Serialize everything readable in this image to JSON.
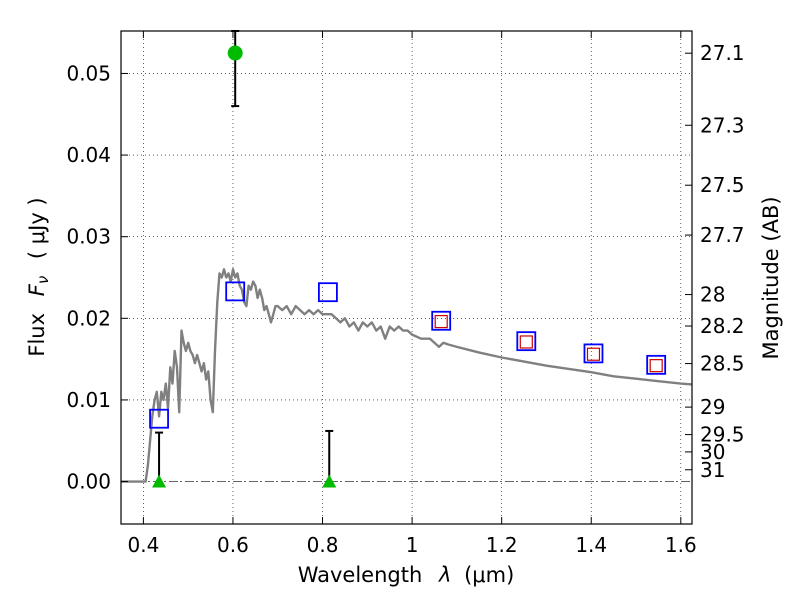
{
  "chart_data": {
    "type": "scatter",
    "xlabel": "Wavelength",
    "xlabel_symbol": "λ",
    "xlabel_unit": "(μm)",
    "ylabel": "Flux",
    "ylabel_symbol": "F",
    "ylabel_symbol_sub": "ν",
    "ylabel_unit": "( μJy )",
    "y2label": "Magnitude (AB)",
    "xlim": [
      0.35,
      1.625
    ],
    "ylim": [
      -0.0052,
      0.0552
    ],
    "x_ticks": [
      0.4,
      0.6,
      0.8,
      1.0,
      1.2,
      1.4,
      1.6
    ],
    "x_tick_labels": [
      "0.4",
      "0.6",
      "0.8",
      "1",
      "1.2",
      "1.4",
      "1.6"
    ],
    "y_ticks": [
      0.0,
      0.01,
      0.02,
      0.03,
      0.04,
      0.05
    ],
    "y_tick_labels": [
      "0.00",
      "0.01",
      "0.02",
      "0.03",
      "0.04",
      "0.05"
    ],
    "y2_ticks": [
      27.1,
      27.3,
      27.5,
      27.7,
      28.0,
      28.2,
      28.5,
      29.0,
      29.5,
      30.0,
      31.0
    ],
    "y2_tick_labels": [
      "27.1",
      "27.3",
      "27.5",
      "27.7",
      "28",
      "28.2",
      "28.5",
      "29",
      "29.5",
      "30",
      "31"
    ],
    "grid": true,
    "colors": {
      "model": "#808080",
      "model_photometry": "#0000ff",
      "template_photometry": "#cc0000",
      "detection": "#00bb00",
      "errorbar": "#000000"
    },
    "series": [
      {
        "type": "line",
        "x": [
          0.35,
          0.36,
          0.37,
          0.38,
          0.39,
          0.4,
          0.405,
          0.41,
          0.415,
          0.42,
          0.425,
          0.43,
          0.435,
          0.44,
          0.445,
          0.45,
          0.455,
          0.46,
          0.465,
          0.47,
          0.475,
          0.48,
          0.485,
          0.49,
          0.495,
          0.5,
          0.505,
          0.51,
          0.515,
          0.52,
          0.525,
          0.53,
          0.535,
          0.54,
          0.545,
          0.55,
          0.555,
          0.56,
          0.565,
          0.57,
          0.575,
          0.58,
          0.585,
          0.59,
          0.595,
          0.6,
          0.605,
          0.61,
          0.615,
          0.62,
          0.625,
          0.63,
          0.635,
          0.64,
          0.645,
          0.65,
          0.655,
          0.66,
          0.665,
          0.67,
          0.675,
          0.68,
          0.685,
          0.69,
          0.695,
          0.7,
          0.71,
          0.72,
          0.73,
          0.74,
          0.75,
          0.76,
          0.77,
          0.78,
          0.79,
          0.8,
          0.81,
          0.82,
          0.83,
          0.84,
          0.85,
          0.86,
          0.87,
          0.88,
          0.89,
          0.9,
          0.91,
          0.92,
          0.93,
          0.94,
          0.95,
          0.96,
          0.97,
          0.98,
          0.99,
          1.0,
          1.02,
          1.04,
          1.06,
          1.07,
          1.08,
          1.1,
          1.15,
          1.2,
          1.25,
          1.3,
          1.35,
          1.4,
          1.45,
          1.5,
          1.55,
          1.6,
          1.625
        ],
        "y": [
          0.0,
          0.0,
          0.0,
          0.0,
          0.0,
          0.0,
          0.0,
          0.002,
          0.005,
          0.008,
          0.01,
          0.011,
          0.008,
          0.011,
          0.01,
          0.012,
          0.009,
          0.014,
          0.012,
          0.016,
          0.014,
          0.0085,
          0.0185,
          0.017,
          0.016,
          0.017,
          0.016,
          0.0155,
          0.0145,
          0.0155,
          0.0145,
          0.0135,
          0.0145,
          0.0125,
          0.0135,
          0.01,
          0.0085,
          0.016,
          0.022,
          0.0255,
          0.025,
          0.026,
          0.025,
          0.0255,
          0.0245,
          0.026,
          0.025,
          0.0255,
          0.024,
          0.0235,
          0.022,
          0.0215,
          0.024,
          0.0235,
          0.0245,
          0.024,
          0.0225,
          0.0235,
          0.0225,
          0.021,
          0.0215,
          0.0205,
          0.0195,
          0.0205,
          0.0215,
          0.0215,
          0.021,
          0.0215,
          0.0205,
          0.0215,
          0.021,
          0.0205,
          0.021,
          0.0205,
          0.021,
          0.0205,
          0.0205,
          0.0205,
          0.02,
          0.0195,
          0.02,
          0.019,
          0.0195,
          0.0185,
          0.0195,
          0.019,
          0.0195,
          0.0185,
          0.019,
          0.0175,
          0.019,
          0.0185,
          0.019,
          0.0185,
          0.0185,
          0.018,
          0.0175,
          0.0175,
          0.0165,
          0.017,
          0.0168,
          0.0165,
          0.0158,
          0.0152,
          0.0147,
          0.0142,
          0.0138,
          0.0134,
          0.0129,
          0.0126,
          0.0123,
          0.012,
          0.0119
        ]
      },
      {
        "type": "scatter",
        "marker": "open-square",
        "x": [
          0.435,
          0.605,
          0.812,
          1.065,
          1.255,
          1.405,
          1.545
        ],
        "y": [
          0.0077,
          0.0233,
          0.0232,
          0.0197,
          0.0172,
          0.0157,
          0.0143
        ]
      },
      {
        "type": "scatter",
        "marker": "open-square-small",
        "x": [
          1.065,
          1.255,
          1.405,
          1.545
        ],
        "y": [
          0.0196,
          0.0171,
          0.0156,
          0.0142
        ]
      },
      {
        "type": "scatter",
        "marker": "filled-circle",
        "x": [
          0.605
        ],
        "y": [
          0.0525
        ],
        "yerr_low": [
          0.046
        ],
        "yerr_high": [
          0.0555
        ]
      },
      {
        "type": "scatter",
        "marker": "filled-triangle",
        "x": [
          0.435,
          0.815
        ],
        "y": [
          0.0,
          0.0
        ],
        "yerr_low": [
          0.0,
          0.0
        ],
        "yerr_high": [
          0.006,
          0.0062
        ]
      }
    ]
  }
}
